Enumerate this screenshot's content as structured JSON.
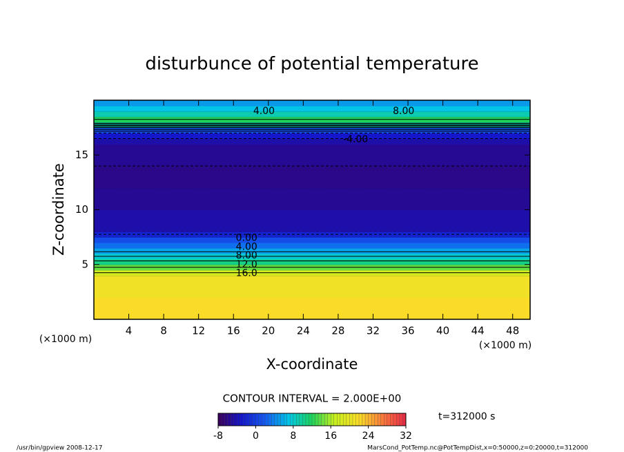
{
  "chart_data": {
    "type": "contour",
    "title": "disturbunce of potential temperature",
    "xlabel": "X-coordinate",
    "ylabel": "Z-coordinate",
    "x_unit": "(×1000 m)",
    "xlim": [
      0,
      50
    ],
    "xticks": [
      4,
      8,
      12,
      16,
      20,
      24,
      28,
      32,
      36,
      40,
      44,
      48
    ],
    "ylim": [
      0,
      20
    ],
    "yticks": [
      5,
      10,
      15
    ],
    "z": [
      0,
      2,
      4,
      4.5,
      5,
      5.5,
      6,
      6.5,
      7,
      7.5,
      8,
      10,
      12,
      14,
      16,
      16.5,
      17,
      17.5,
      18,
      18.5,
      19,
      19.5,
      20
    ],
    "values": [
      22,
      22,
      20,
      16,
      12,
      9,
      7,
      4,
      2,
      0,
      -4,
      -5,
      -6,
      -6,
      -5,
      -4,
      -2,
      4,
      14,
      10,
      8,
      6,
      4
    ],
    "contour_interval": {
      "value": 2,
      "label": "CONTOUR INTERVAL = 2.000E+00"
    },
    "contours": [
      {
        "value": 0,
        "label": "0.00",
        "x": 17.5,
        "z": 7.4
      },
      {
        "value": 4,
        "label": "4.00",
        "x": 17.5,
        "z": 6.6
      },
      {
        "value": 8,
        "label": "8.00",
        "x": 17.5,
        "z": 5.8
      },
      {
        "value": 12,
        "label": "12.0",
        "x": 17.5,
        "z": 5.0
      },
      {
        "value": 16,
        "label": "16.0",
        "x": 17.5,
        "z": 4.2
      },
      {
        "value": -4,
        "label": "-4.00",
        "x": 30,
        "z": 16.4
      },
      {
        "value": 4,
        "label": "4.00",
        "x": 19.5,
        "z": 19.0
      },
      {
        "value": 8,
        "label": "8.00",
        "x": 35.5,
        "z": 19.0
      }
    ],
    "clim": [
      -8,
      32
    ],
    "cticks": [
      -8,
      0,
      8,
      16,
      24,
      32
    ],
    "time": "t=312000 s",
    "footer_left": "/usr/bin/gpview   2008-12-17",
    "footer_right": "MarsCond_PotTemp.nc@PotTempDist,x=0:50000,z=0:20000,t=312000"
  }
}
